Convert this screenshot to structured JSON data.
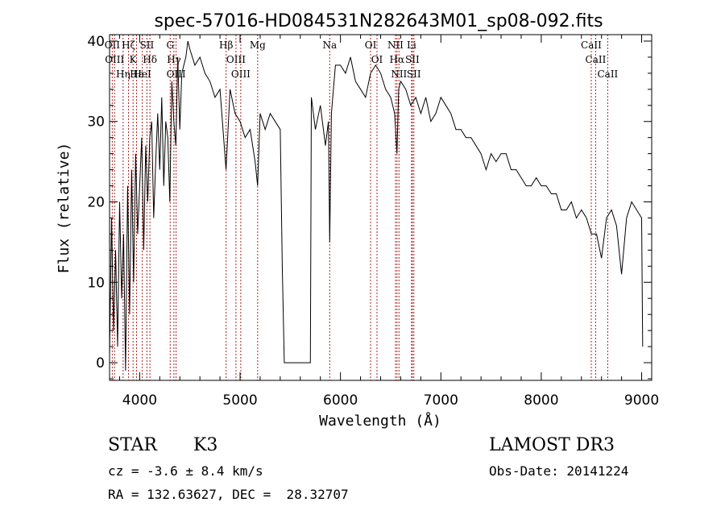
{
  "chart_data": {
    "type": "line",
    "title": "spec-57016-HD084531N282643M01_sp08-092.fits",
    "xlabel": "Wavelength (Å)",
    "ylabel": "Flux (relative)",
    "xlim": [
      3700,
      9100
    ],
    "ylim": [
      -2.2,
      40.8
    ],
    "x_ticks": [
      4000,
      5000,
      6000,
      7000,
      8000,
      9000
    ],
    "y_ticks": [
      0,
      10,
      20,
      30,
      40
    ],
    "grid": false,
    "legend": "none",
    "line_color": "#000000",
    "marker_color": "#b22222",
    "series": [
      {
        "x": [
          3700,
          3720,
          3740,
          3760,
          3780,
          3800,
          3820,
          3840,
          3860,
          3880,
          3900,
          3920,
          3940,
          3960,
          3980,
          4000,
          4020,
          4040,
          4060,
          4080,
          4100,
          4120,
          4140,
          4160,
          4180,
          4200,
          4220,
          4240,
          4260,
          4280,
          4300,
          4320,
          4340,
          4360,
          4380,
          4400,
          4420,
          4440,
          4460,
          4480,
          4500,
          4550,
          4600,
          4650,
          4700,
          4750,
          4800,
          4860,
          4900,
          4950,
          5000,
          5050,
          5100,
          5150,
          5175,
          5200,
          5250,
          5300,
          5350,
          5400,
          5420,
          5440,
          5450,
          5500,
          5600,
          5700,
          5710,
          5720,
          5750,
          5800,
          5850,
          5880,
          5893,
          5910,
          5950,
          6000,
          6050,
          6100,
          6150,
          6200,
          6250,
          6300,
          6350,
          6400,
          6450,
          6500,
          6540,
          6563,
          6580,
          6600,
          6650,
          6700,
          6750,
          6800,
          6850,
          6900,
          6950,
          7000,
          7050,
          7100,
          7150,
          7200,
          7250,
          7300,
          7350,
          7400,
          7450,
          7500,
          7550,
          7600,
          7650,
          7700,
          7750,
          7800,
          7850,
          7900,
          7950,
          8000,
          8050,
          8100,
          8150,
          8200,
          8250,
          8300,
          8350,
          8400,
          8450,
          8500,
          8542,
          8550,
          8600,
          8650,
          8700,
          8750,
          8800,
          8850,
          8900,
          8950,
          9000,
          9010
        ],
        "y": [
          1,
          18,
          4,
          14,
          2,
          20,
          8,
          16,
          -1,
          22,
          6,
          24,
          10,
          26,
          16,
          22,
          28,
          14,
          27,
          20,
          28,
          30,
          18,
          25,
          31,
          24,
          33,
          22,
          30,
          28,
          20,
          35,
          30,
          27,
          38,
          29,
          36,
          37,
          38,
          40,
          39,
          37,
          38,
          36,
          35,
          33,
          34,
          24,
          34,
          31,
          30,
          28,
          29,
          25,
          22,
          31,
          29,
          31,
          30,
          29,
          12,
          0,
          0,
          0,
          0,
          0,
          33,
          32,
          29,
          32,
          27,
          30,
          15,
          31,
          37,
          37,
          36,
          38,
          35,
          34,
          33,
          36,
          37,
          36,
          34,
          33,
          31,
          26,
          34,
          35,
          34,
          32,
          33,
          31,
          33,
          30,
          31,
          33,
          32,
          31,
          29,
          29,
          28,
          28,
          27,
          26,
          24,
          26,
          25,
          26,
          26,
          24,
          24,
          23,
          22,
          22,
          23,
          22,
          22,
          21,
          21,
          19,
          19,
          20,
          18,
          19,
          18,
          16,
          16,
          16,
          13,
          18,
          19,
          17,
          11,
          18,
          20,
          19,
          18,
          2
        ]
      }
    ],
    "line_markers": [
      {
        "x": 3727,
        "label": "OII"
      },
      {
        "x": 3750,
        "label": "OIII"
      },
      {
        "x": 3835,
        "label": "Hη"
      },
      {
        "x": 3889,
        "label": "Hζ"
      },
      {
        "x": 3934,
        "label": "K"
      },
      {
        "x": 3969,
        "label": "Hε"
      },
      {
        "x": 4026,
        "label": "HeI"
      },
      {
        "x": 4102,
        "label": "Hδ"
      },
      {
        "x": 4072,
        "label": "SII"
      },
      {
        "x": 4304,
        "label": "G"
      },
      {
        "x": 4341,
        "label": "Hγ"
      },
      {
        "x": 4363,
        "label": "OIII"
      },
      {
        "x": 4861,
        "label": "Hβ"
      },
      {
        "x": 4959,
        "label": "OIII"
      },
      {
        "x": 5007,
        "label": "OIII"
      },
      {
        "x": 5175,
        "label": "Mg"
      },
      {
        "x": 5893,
        "label": "Na"
      },
      {
        "x": 6300,
        "label": "OI"
      },
      {
        "x": 6364,
        "label": "OI"
      },
      {
        "x": 6548,
        "label": "NII"
      },
      {
        "x": 6563,
        "label": "Hα"
      },
      {
        "x": 6583,
        "label": "NII"
      },
      {
        "x": 6708,
        "label": "Li"
      },
      {
        "x": 6716,
        "label": "SII"
      },
      {
        "x": 6731,
        "label": "SII"
      },
      {
        "x": 8498,
        "label": "CaII"
      },
      {
        "x": 8542,
        "label": "CaII"
      },
      {
        "x": 8662,
        "label": "CaII"
      }
    ]
  },
  "info": {
    "object_class": "STAR",
    "subclass": "K3",
    "redshift": "cz = -3.6 ± 8.4 km/s",
    "coords": "RA = 132.63627, DEC =  28.32707",
    "survey": "LAMOST DR3",
    "obs_date": "Obs-Date: 20141224"
  }
}
